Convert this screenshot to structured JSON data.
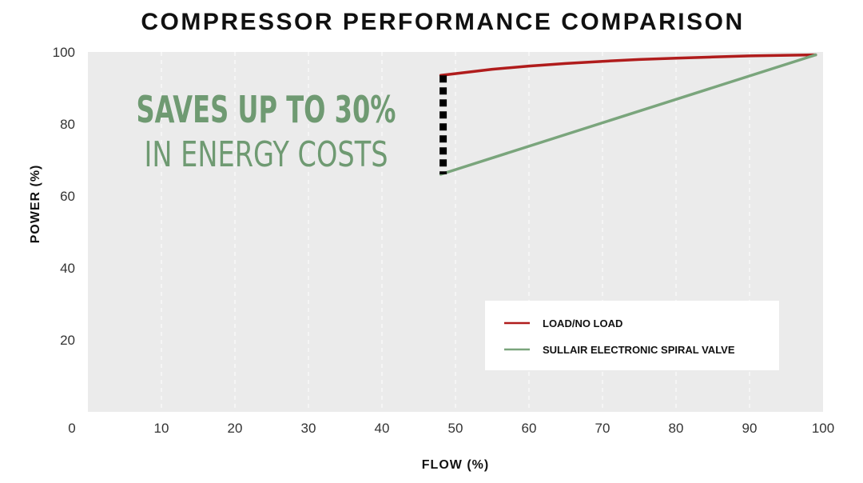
{
  "chart_data": {
    "type": "line",
    "title": "COMPRESSOR PERFORMANCE COMPARISON",
    "xlabel": "FLOW (%)",
    "ylabel": "POWER (%)",
    "xlim": [
      0,
      100
    ],
    "ylim": [
      0,
      100
    ],
    "x_ticks": [
      "0",
      "10",
      "20",
      "30",
      "40",
      "50",
      "60",
      "70",
      "80",
      "90",
      "100"
    ],
    "y_ticks": [
      "20",
      "40",
      "60",
      "80",
      "100"
    ],
    "grid": "vertical dashed",
    "legend_position": "bottom-right",
    "series": [
      {
        "name": "LOAD/NO LOAD",
        "color": "#b01c1c",
        "x": [
          48,
          55,
          60,
          65,
          70,
          75,
          80,
          85,
          90,
          95,
          99
        ],
        "y": [
          93.5,
          95.2,
          96.1,
          96.8,
          97.4,
          97.9,
          98.3,
          98.6,
          98.9,
          99.1,
          99.2
        ]
      },
      {
        "name": "SULLAIR ELECTRONIC SPIRAL VALVE",
        "color": "#7aa57c",
        "x": [
          48,
          99
        ],
        "y": [
          66,
          99.2
        ]
      }
    ],
    "annotations": {
      "callout_line1": "SAVES UP TO 30%",
      "callout_line2": "IN ENERGY COSTS",
      "gap_marker": {
        "x": 48,
        "y_from": 66,
        "y_to": 93.5,
        "color": "#000000"
      }
    },
    "colors": {
      "plot_background": "#ebebeb",
      "callout": "#6f9a72"
    }
  }
}
